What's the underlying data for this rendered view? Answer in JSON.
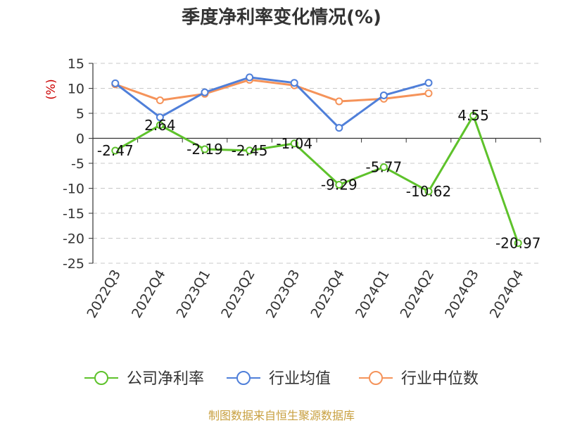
{
  "title": "季度净利率变化情况(%)",
  "source": "制图数据来自恒生聚源数据库",
  "unit": "(%)",
  "colors": {
    "company": "#5ec22b",
    "industry_avg": "#4f7fd9",
    "industry_median": "#f5935a"
  },
  "chart_data": {
    "type": "line",
    "title": "季度净利率变化情况(%)",
    "ylabel": "(%)",
    "xlabel": "",
    "categories": [
      "2022Q3",
      "2022Q4",
      "2023Q1",
      "2023Q2",
      "2023Q3",
      "2023Q4",
      "2024Q1",
      "2024Q2",
      "2024Q3",
      "2024Q4"
    ],
    "ylim": [
      -25,
      15
    ],
    "yticks": [
      15,
      10,
      5,
      0,
      -5,
      -10,
      -15,
      -20,
      -25
    ],
    "grid": "horizontal-dashed",
    "legend_position": "bottom",
    "series": [
      {
        "name": "公司净利率",
        "values": [
          -2.47,
          2.64,
          -2.19,
          -2.45,
          -1.04,
          -9.29,
          -5.77,
          -10.62,
          4.55,
          -20.97
        ],
        "labels": [
          "-2.47",
          "2.64",
          "-2.19",
          "-2.45",
          "-1.04",
          "-9.29",
          "-5.77",
          "-10.62",
          "4.55",
          "-20.97"
        ]
      },
      {
        "name": "行业均值",
        "values": [
          11.0,
          4.2,
          9.2,
          12.2,
          11.1,
          2.1,
          8.6,
          11.1,
          null,
          null
        ]
      },
      {
        "name": "行业中位数",
        "values": [
          10.8,
          7.6,
          8.9,
          11.7,
          10.6,
          7.4,
          7.9,
          9.0,
          null,
          null
        ]
      }
    ]
  }
}
